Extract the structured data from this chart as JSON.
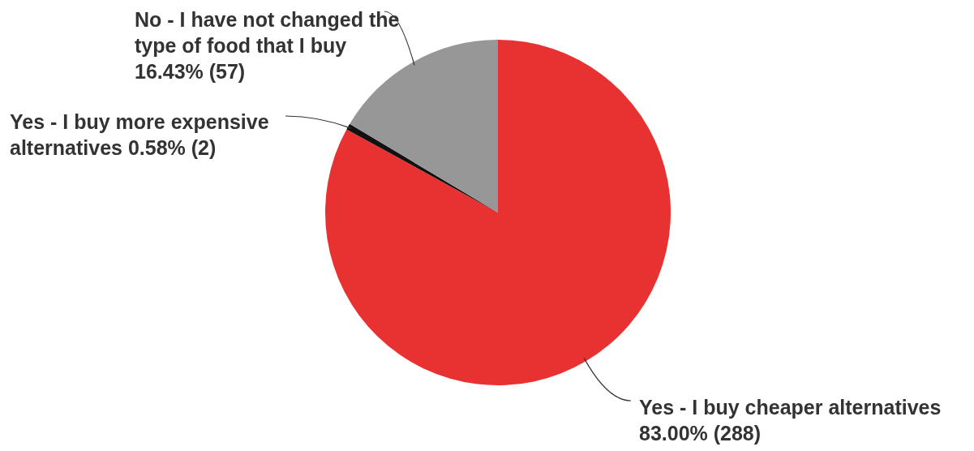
{
  "chart_data": {
    "type": "pie",
    "categories": [
      "Yes - I buy cheaper alternatives",
      "Yes - I buy more expensive alternatives",
      "No - I have not changed the type of food that I buy"
    ],
    "values": [
      288,
      2,
      57
    ],
    "value_labels": [
      "83.00% (288)",
      "0.58% (2)",
      "16.43% (57)"
    ],
    "colors": [
      "#e83232",
      "#111111",
      "#979797"
    ],
    "legend": false
  }
}
